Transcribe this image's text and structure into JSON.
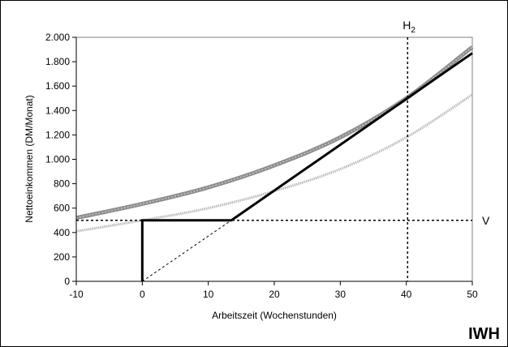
{
  "brand": {
    "logo_text": "IWH"
  },
  "chart_data": {
    "type": "line",
    "xlabel": "Arbeitszeit (Wochenstunden)",
    "ylabel": "Nettoeinkommen (DM/Monat)",
    "xlim": [
      -10,
      50
    ],
    "ylim": [
      0,
      2000
    ],
    "x_ticks": [
      -10,
      0,
      10,
      20,
      30,
      40,
      50
    ],
    "y_ticks": [
      0,
      200,
      400,
      600,
      800,
      1000,
      1200,
      1400,
      1600,
      1800,
      2000
    ],
    "y_tick_labels": [
      "0",
      "200",
      "400",
      "600",
      "800",
      "1.000",
      "1.200",
      "1.400",
      "1.600",
      "1.800",
      "2.000"
    ],
    "grid": false,
    "series": [
      {
        "style": "thick-gray",
        "color": "#8c8c8c",
        "x": [
          -10,
          0,
          10,
          20,
          30,
          40,
          50
        ],
        "y": [
          520,
          635,
          770,
          950,
          1180,
          1500,
          1920
        ]
      },
      {
        "style": "light-gray",
        "color": "#b8b8b8",
        "x": [
          -10,
          0,
          10,
          20,
          30,
          40,
          50
        ],
        "y": [
          410,
          500,
          600,
          740,
          920,
          1180,
          1530
        ]
      },
      {
        "style": "black-kinked",
        "color": "#000000",
        "x": [
          0,
          0,
          13.5,
          50
        ],
        "y": [
          0,
          500,
          500,
          1870
        ]
      },
      {
        "style": "dashed-thin",
        "color": "#000000",
        "x": [
          0,
          13.5
        ],
        "y": [
          0,
          500
        ]
      }
    ],
    "reference_lines": [
      {
        "orientation": "vertical",
        "value": 40.2,
        "label": "H",
        "label_sub": "2"
      },
      {
        "orientation": "horizontal",
        "value": 500,
        "label": "V"
      }
    ]
  }
}
